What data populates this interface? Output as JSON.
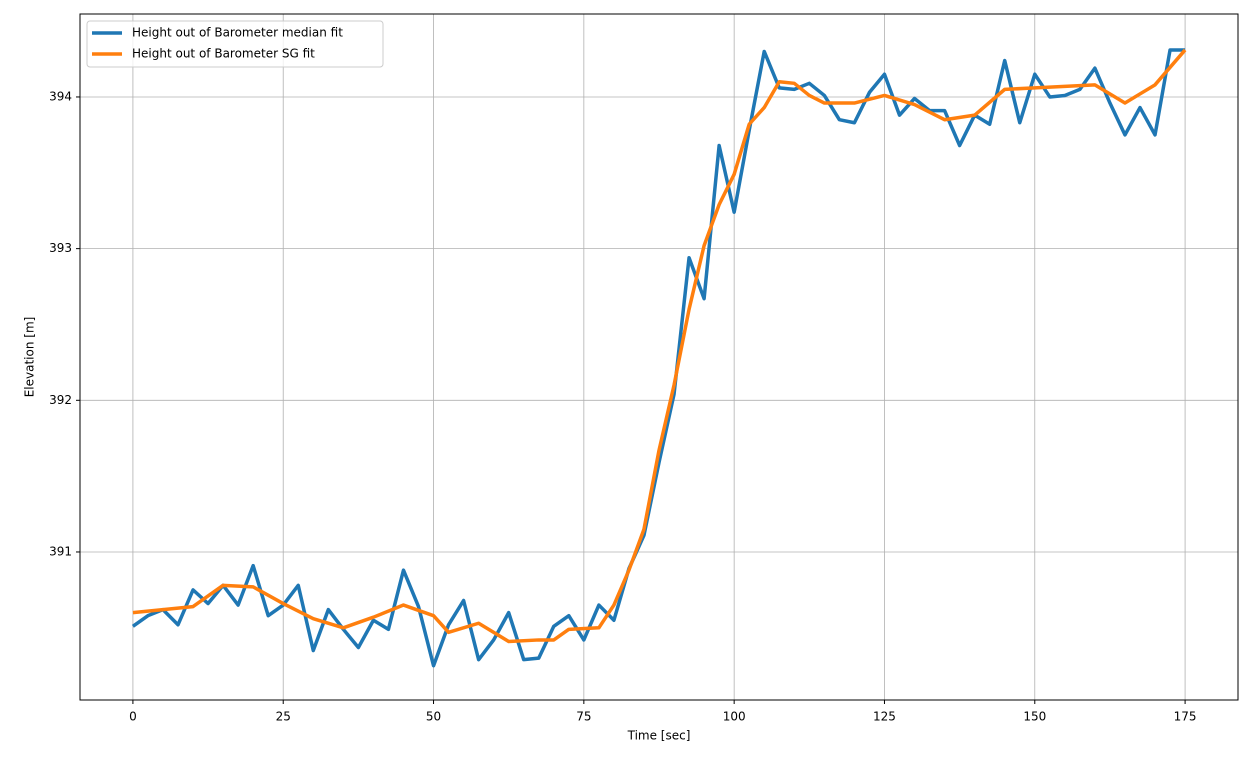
{
  "chart_data": {
    "type": "line",
    "xlabel": "Time [sec]",
    "ylabel": "Elevation [m]",
    "xlim": [
      -8.8,
      183.8
    ],
    "ylim": [
      390.024,
      394.547
    ],
    "xticks": [
      0,
      25,
      50,
      75,
      100,
      125,
      150,
      175
    ],
    "yticks": [
      391,
      392,
      393,
      394
    ],
    "grid": true,
    "legend": "upper left",
    "series": [
      {
        "name": "Height out of Barometer median fit",
        "color": "#1f77b4",
        "x": [
          0,
          2.5,
          5,
          7.5,
          10,
          12.5,
          15,
          17.5,
          20,
          22.5,
          25,
          27.5,
          30,
          32.5,
          35,
          37.5,
          40,
          42.5,
          45,
          47.5,
          50,
          52.5,
          55,
          57.5,
          60,
          62.5,
          65,
          67.5,
          70,
          72.5,
          75,
          77.5,
          80,
          82.5,
          85,
          87.5,
          90,
          92.5,
          95,
          97.5,
          100,
          102.5,
          105,
          107.5,
          110,
          112.5,
          115,
          117.5,
          120,
          122.5,
          125,
          127.5,
          130,
          132.5,
          135,
          137.5,
          140,
          142.5,
          145,
          147.5,
          150,
          152.5,
          155,
          157.5,
          160,
          162.5,
          165,
          167.5,
          170,
          172.5,
          175
        ],
        "values": [
          390.51,
          390.58,
          390.62,
          390.52,
          390.75,
          390.66,
          390.78,
          390.65,
          390.91,
          390.58,
          390.65,
          390.78,
          390.35,
          390.62,
          390.49,
          390.37,
          390.55,
          390.49,
          390.88,
          390.64,
          390.25,
          390.52,
          390.68,
          390.29,
          390.42,
          390.6,
          390.29,
          390.3,
          390.51,
          390.58,
          390.42,
          390.65,
          390.55,
          390.89,
          391.11,
          391.59,
          392.04,
          392.94,
          392.67,
          393.68,
          393.24,
          393.78,
          394.3,
          394.06,
          394.05,
          394.09,
          394.01,
          393.85,
          393.83,
          394.03,
          394.15,
          393.88,
          393.99,
          393.91,
          393.91,
          393.68,
          393.88,
          393.82,
          394.24,
          393.83,
          394.15,
          394.0,
          394.01,
          394.05,
          394.19,
          393.96,
          393.75,
          393.93,
          393.75,
          394.31,
          394.31
        ]
      },
      {
        "name": "Height out of Barometer SG fit",
        "color": "#ff7f0e",
        "x": [
          0,
          10,
          15,
          20,
          25,
          30,
          35,
          40,
          45,
          50,
          52.5,
          57.5,
          62.5,
          67.5,
          70,
          72.5,
          77.5,
          80,
          82.5,
          85,
          87.5,
          90,
          92.5,
          95,
          97.5,
          100,
          102.5,
          105,
          107.5,
          110,
          112.5,
          115,
          120,
          125,
          130,
          135,
          140,
          145,
          150,
          155,
          160,
          165,
          170,
          175
        ],
        "values": [
          390.6,
          390.64,
          390.78,
          390.77,
          390.66,
          390.56,
          390.5,
          390.57,
          390.65,
          390.58,
          390.47,
          390.53,
          390.41,
          390.42,
          390.42,
          390.49,
          390.5,
          390.65,
          390.88,
          391.15,
          391.67,
          392.1,
          392.6,
          393.02,
          393.29,
          393.49,
          393.82,
          393.93,
          394.1,
          394.09,
          394.01,
          393.96,
          393.96,
          394.01,
          393.95,
          393.85,
          393.88,
          394.05,
          394.06,
          394.07,
          394.08,
          393.96,
          394.08,
          394.31
        ]
      }
    ]
  }
}
